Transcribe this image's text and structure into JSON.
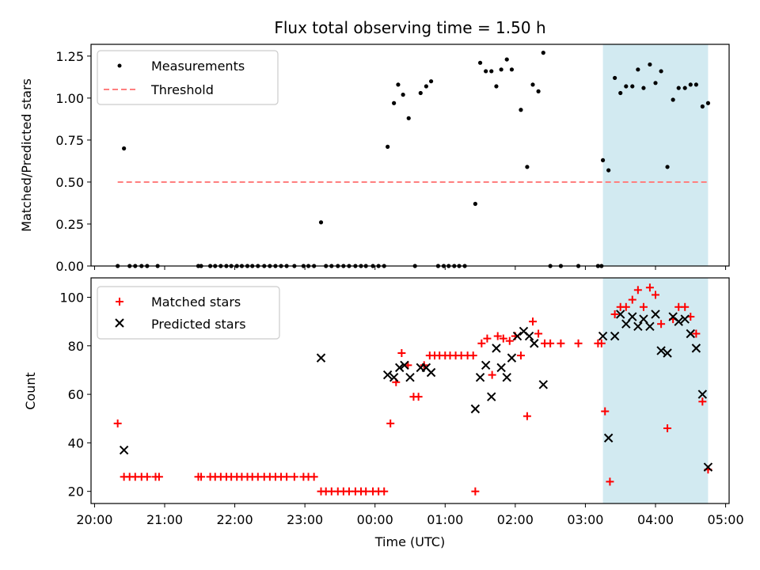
{
  "chart_data": [
    {
      "type": "scatter",
      "title": "Flux total observing time = 1.50 h",
      "xlabel": "",
      "ylabel": "Matched/Predicted stars",
      "xlim": [
        -0.05,
        9.05
      ],
      "ylim": [
        0,
        1.32
      ],
      "yticks": [
        0.0,
        0.25,
        0.5,
        0.75,
        1.0,
        1.25
      ],
      "ytick_labels": [
        "0.00",
        "0.25",
        "0.50",
        "0.75",
        "1.00",
        "1.25"
      ],
      "highlight_span": [
        7.25,
        8.75
      ],
      "legend_position": "top-left",
      "legend": [
        "Measurements",
        "Threshold"
      ],
      "threshold": {
        "name": "Threshold",
        "y": 0.5,
        "x_range": [
          0.33,
          8.75
        ],
        "color": "#ff7f7f"
      },
      "series": [
        {
          "name": "Measurements",
          "color": "#000000",
          "points": [
            [
              0.33,
              0
            ],
            [
              0.42,
              0.7
            ],
            [
              0.5,
              0
            ],
            [
              0.58,
              0
            ],
            [
              0.67,
              0
            ],
            [
              0.75,
              0
            ],
            [
              0.9,
              0
            ],
            [
              1.48,
              0
            ],
            [
              1.52,
              0
            ],
            [
              1.65,
              0
            ],
            [
              1.72,
              0
            ],
            [
              1.8,
              0
            ],
            [
              1.88,
              0
            ],
            [
              1.95,
              0
            ],
            [
              2.03,
              0
            ],
            [
              2.1,
              0
            ],
            [
              2.18,
              0
            ],
            [
              2.25,
              0
            ],
            [
              2.33,
              0
            ],
            [
              2.42,
              0
            ],
            [
              2.5,
              0
            ],
            [
              2.58,
              0
            ],
            [
              2.66,
              0
            ],
            [
              2.74,
              0
            ],
            [
              2.85,
              0
            ],
            [
              2.98,
              0
            ],
            [
              3.05,
              0
            ],
            [
              3.13,
              0
            ],
            [
              3.23,
              0.26
            ],
            [
              3.3,
              0
            ],
            [
              3.38,
              0
            ],
            [
              3.47,
              0
            ],
            [
              3.55,
              0
            ],
            [
              3.63,
              0
            ],
            [
              3.72,
              0
            ],
            [
              3.8,
              0
            ],
            [
              3.87,
              0
            ],
            [
              3.97,
              0
            ],
            [
              4.05,
              0
            ],
            [
              4.13,
              0
            ],
            [
              4.18,
              0.71
            ],
            [
              4.27,
              0.97
            ],
            [
              4.33,
              1.08
            ],
            [
              4.4,
              1.02
            ],
            [
              4.48,
              0.88
            ],
            [
              4.57,
              0
            ],
            [
              4.65,
              1.03
            ],
            [
              4.73,
              1.07
            ],
            [
              4.8,
              1.1
            ],
            [
              4.9,
              0
            ],
            [
              4.98,
              0
            ],
            [
              5.05,
              0
            ],
            [
              5.13,
              0
            ],
            [
              5.2,
              0
            ],
            [
              5.28,
              0
            ],
            [
              5.43,
              0.37
            ],
            [
              5.5,
              1.21
            ],
            [
              5.58,
              1.16
            ],
            [
              5.66,
              1.16
            ],
            [
              5.73,
              1.07
            ],
            [
              5.8,
              1.17
            ],
            [
              5.88,
              1.23
            ],
            [
              5.95,
              1.17
            ],
            [
              6.08,
              0.93
            ],
            [
              6.17,
              0.59
            ],
            [
              6.25,
              1.08
            ],
            [
              6.33,
              1.04
            ],
            [
              6.4,
              1.27
            ],
            [
              6.5,
              0
            ],
            [
              6.65,
              0
            ],
            [
              6.9,
              0
            ],
            [
              7.18,
              0
            ],
            [
              7.23,
              0
            ],
            [
              7.25,
              0.63
            ],
            [
              7.33,
              0.57
            ],
            [
              7.42,
              1.12
            ],
            [
              7.5,
              1.03
            ],
            [
              7.58,
              1.07
            ],
            [
              7.67,
              1.07
            ],
            [
              7.75,
              1.17
            ],
            [
              7.83,
              1.06
            ],
            [
              7.92,
              1.2
            ],
            [
              8.0,
              1.09
            ],
            [
              8.08,
              1.16
            ],
            [
              8.17,
              0.59
            ],
            [
              8.25,
              0.99
            ],
            [
              8.33,
              1.06
            ],
            [
              8.42,
              1.06
            ],
            [
              8.5,
              1.08
            ],
            [
              8.58,
              1.08
            ],
            [
              8.67,
              0.95
            ],
            [
              8.75,
              0.97
            ]
          ]
        }
      ]
    },
    {
      "type": "scatter",
      "title": "",
      "xlabel": "Time (UTC)",
      "ylabel": "Count",
      "xlim": [
        -0.05,
        9.05
      ],
      "ylim": [
        15,
        108
      ],
      "xticks": [
        0,
        1,
        2,
        3,
        4,
        5,
        6,
        7,
        8,
        9
      ],
      "xtick_labels": [
        "20:00",
        "21:00",
        "22:00",
        "23:00",
        "00:00",
        "01:00",
        "02:00",
        "03:00",
        "04:00",
        "05:00"
      ],
      "yticks": [
        20,
        40,
        60,
        80,
        100
      ],
      "ytick_labels": [
        "20",
        "40",
        "60",
        "80",
        "100"
      ],
      "highlight_span": [
        7.25,
        8.75
      ],
      "legend_position": "top-left",
      "legend": [
        "Matched stars",
        "Predicted stars"
      ],
      "series": [
        {
          "name": "Matched stars",
          "color": "#ff0000",
          "marker": "plus",
          "points": [
            [
              0.33,
              48
            ],
            [
              0.42,
              26
            ],
            [
              0.5,
              26
            ],
            [
              0.58,
              26
            ],
            [
              0.67,
              26
            ],
            [
              0.75,
              26
            ],
            [
              0.87,
              26
            ],
            [
              0.92,
              26
            ],
            [
              1.48,
              26
            ],
            [
              1.52,
              26
            ],
            [
              1.65,
              26
            ],
            [
              1.72,
              26
            ],
            [
              1.8,
              26
            ],
            [
              1.88,
              26
            ],
            [
              1.95,
              26
            ],
            [
              2.03,
              26
            ],
            [
              2.1,
              26
            ],
            [
              2.18,
              26
            ],
            [
              2.25,
              26
            ],
            [
              2.33,
              26
            ],
            [
              2.42,
              26
            ],
            [
              2.5,
              26
            ],
            [
              2.58,
              26
            ],
            [
              2.66,
              26
            ],
            [
              2.74,
              26
            ],
            [
              2.85,
              26
            ],
            [
              2.98,
              26
            ],
            [
              3.05,
              26
            ],
            [
              3.13,
              26
            ],
            [
              3.23,
              20
            ],
            [
              3.3,
              20
            ],
            [
              3.38,
              20
            ],
            [
              3.47,
              20
            ],
            [
              3.55,
              20
            ],
            [
              3.63,
              20
            ],
            [
              3.72,
              20
            ],
            [
              3.8,
              20
            ],
            [
              3.87,
              20
            ],
            [
              3.97,
              20
            ],
            [
              4.05,
              20
            ],
            [
              4.13,
              20
            ],
            [
              4.22,
              48
            ],
            [
              4.3,
              65
            ],
            [
              4.38,
              77
            ],
            [
              4.47,
              72
            ],
            [
              4.55,
              59
            ],
            [
              4.62,
              59
            ],
            [
              4.7,
              72
            ],
            [
              4.78,
              76
            ],
            [
              4.85,
              76
            ],
            [
              4.92,
              76
            ],
            [
              5.0,
              76
            ],
            [
              5.07,
              76
            ],
            [
              5.15,
              76
            ],
            [
              5.23,
              76
            ],
            [
              5.32,
              76
            ],
            [
              5.4,
              76
            ],
            [
              5.43,
              20
            ],
            [
              5.52,
              81
            ],
            [
              5.6,
              83
            ],
            [
              5.67,
              68
            ],
            [
              5.75,
              84
            ],
            [
              5.83,
              83
            ],
            [
              5.92,
              82
            ],
            [
              6.0,
              84
            ],
            [
              6.08,
              76
            ],
            [
              6.17,
              51
            ],
            [
              6.25,
              90
            ],
            [
              6.33,
              85
            ],
            [
              6.42,
              81
            ],
            [
              6.5,
              81
            ],
            [
              6.65,
              81
            ],
            [
              6.9,
              81
            ],
            [
              7.18,
              81
            ],
            [
              7.23,
              81
            ],
            [
              7.28,
              53
            ],
            [
              7.35,
              24
            ],
            [
              7.42,
              93
            ],
            [
              7.5,
              96
            ],
            [
              7.58,
              96
            ],
            [
              7.67,
              99
            ],
            [
              7.75,
              103
            ],
            [
              7.83,
              96
            ],
            [
              7.92,
              104
            ],
            [
              8.0,
              101
            ],
            [
              8.08,
              89
            ],
            [
              8.17,
              46
            ],
            [
              8.25,
              91
            ],
            [
              8.33,
              96
            ],
            [
              8.42,
              96
            ],
            [
              8.5,
              92
            ],
            [
              8.58,
              85
            ],
            [
              8.67,
              57
            ],
            [
              8.75,
              29
            ]
          ]
        },
        {
          "name": "Predicted stars",
          "color": "#000000",
          "marker": "x",
          "points": [
            [
              0.42,
              37
            ],
            [
              3.23,
              75
            ],
            [
              4.18,
              68
            ],
            [
              4.27,
              67
            ],
            [
              4.35,
              71
            ],
            [
              4.42,
              72
            ],
            [
              4.5,
              67
            ],
            [
              4.65,
              71
            ],
            [
              4.73,
              71
            ],
            [
              4.8,
              69
            ],
            [
              5.43,
              54
            ],
            [
              5.5,
              67
            ],
            [
              5.58,
              72
            ],
            [
              5.66,
              59
            ],
            [
              5.73,
              79
            ],
            [
              5.8,
              71
            ],
            [
              5.88,
              67
            ],
            [
              5.95,
              75
            ],
            [
              6.03,
              84
            ],
            [
              6.12,
              86
            ],
            [
              6.2,
              84
            ],
            [
              6.27,
              81
            ],
            [
              6.4,
              64
            ],
            [
              7.25,
              84
            ],
            [
              7.33,
              42
            ],
            [
              7.42,
              84
            ],
            [
              7.5,
              93
            ],
            [
              7.58,
              89
            ],
            [
              7.67,
              92
            ],
            [
              7.75,
              88
            ],
            [
              7.83,
              91
            ],
            [
              7.92,
              88
            ],
            [
              8.0,
              93
            ],
            [
              8.08,
              78
            ],
            [
              8.17,
              77
            ],
            [
              8.25,
              92
            ],
            [
              8.33,
              90
            ],
            [
              8.42,
              91
            ],
            [
              8.5,
              85
            ],
            [
              8.58,
              79
            ],
            [
              8.67,
              60
            ],
            [
              8.75,
              30
            ]
          ]
        }
      ]
    }
  ]
}
